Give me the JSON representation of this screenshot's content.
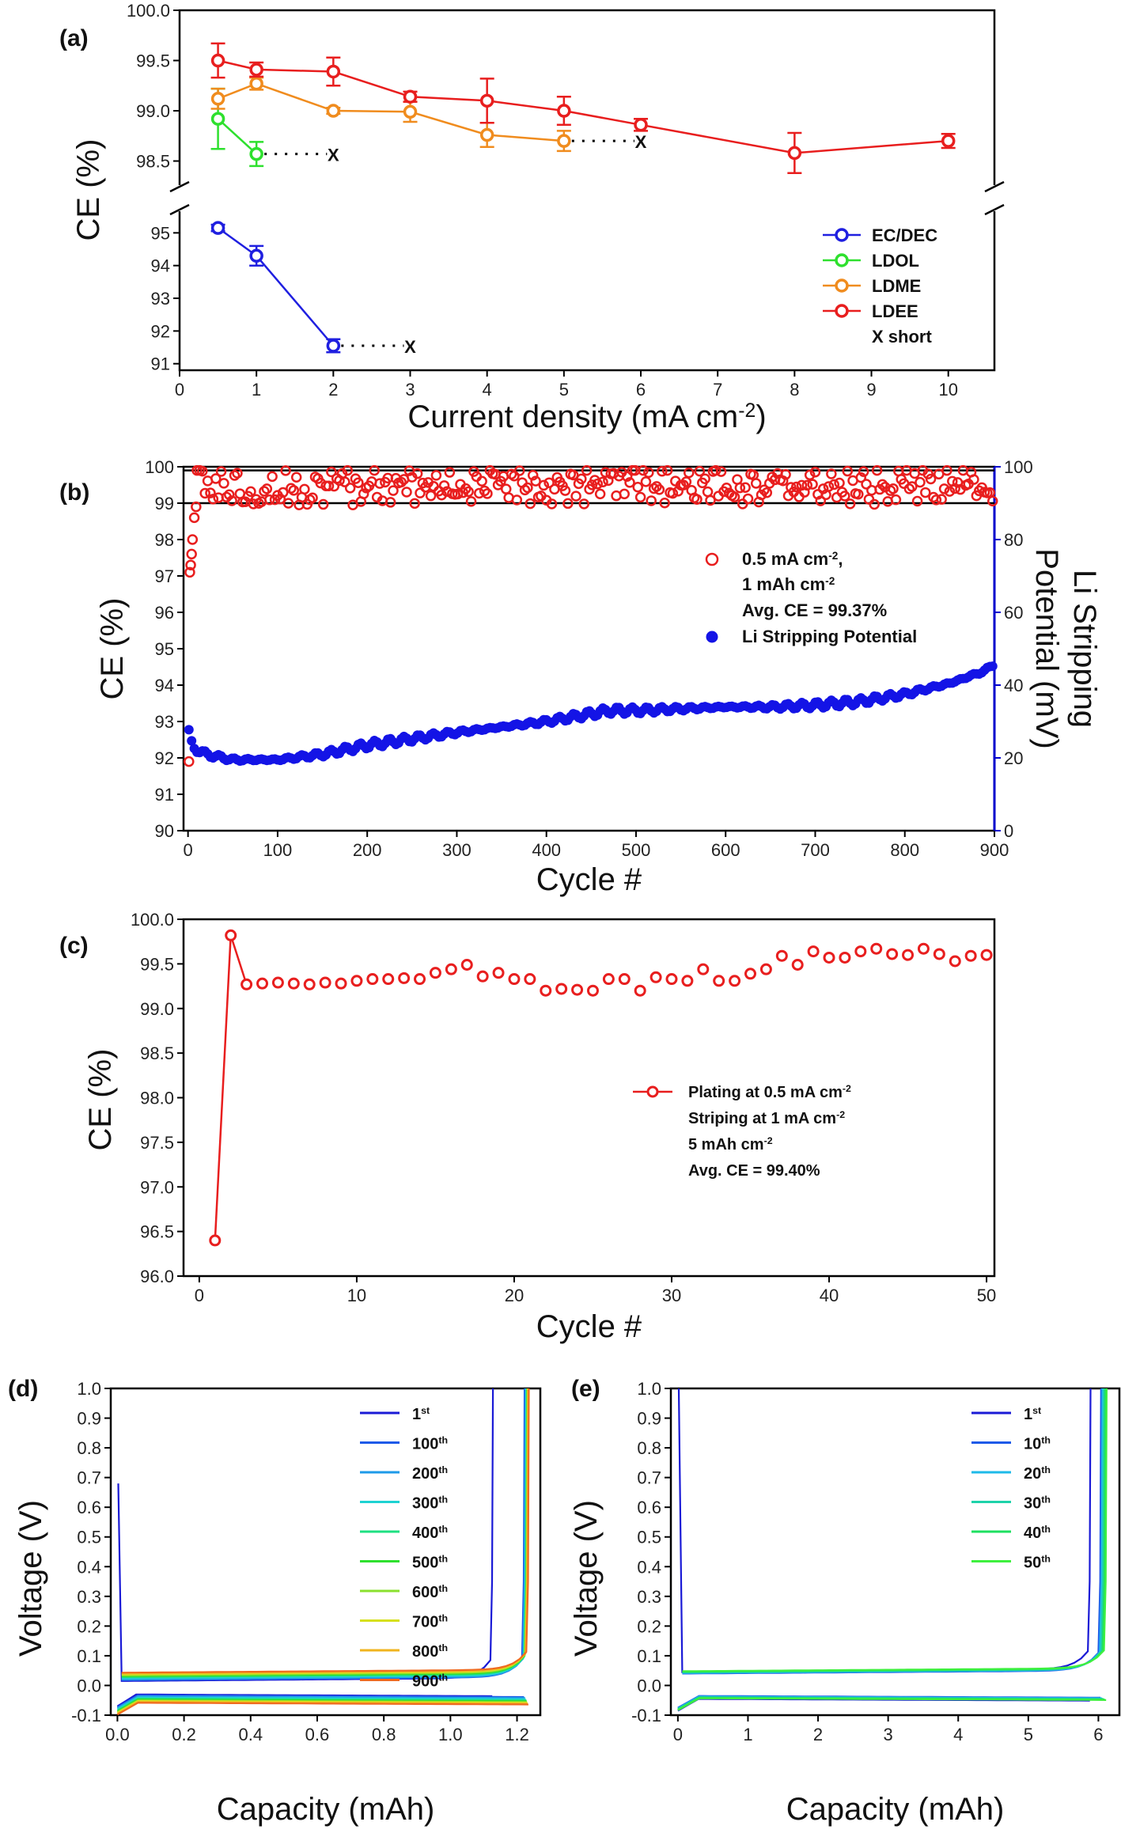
{
  "chart_data": [
    {
      "panel": "(a)",
      "type": "line",
      "xlabel": "Current density (mA cm",
      "xlabel_sup": "-2",
      "xlabel_end": ")",
      "ylabel": "CE (%)",
      "xlim": [
        0,
        10.6
      ],
      "xticks": [
        0,
        1,
        2,
        3,
        4,
        5,
        6,
        7,
        8,
        9,
        10
      ],
      "upper": {
        "ylim": [
          98.15,
          100.0
        ],
        "yticks": [
          "98.5",
          "99.0",
          "99.5",
          "100.0"
        ]
      },
      "lower": {
        "ylim": [
          90.8,
          96.0
        ],
        "yticks": [
          "91",
          "92",
          "93",
          "94",
          "95"
        ]
      },
      "series": [
        {
          "name": "EC/DEC",
          "color": "#1f1fe0",
          "x": [
            0.5,
            1,
            2
          ],
          "y": [
            95.15,
            94.3,
            91.55
          ],
          "err": [
            0.1,
            0.3,
            0.2
          ],
          "short_to": 3,
          "axis": "lower"
        },
        {
          "name": "LDOL",
          "color": "#2ee02e",
          "x": [
            0.5,
            1
          ],
          "y": [
            98.92,
            98.57
          ],
          "err": [
            0.3,
            0.12
          ],
          "short_to": 2,
          "axis": "upper"
        },
        {
          "name": "LDME",
          "color": "#f08c1e",
          "x": [
            0.5,
            1,
            2,
            3,
            4,
            5
          ],
          "y": [
            99.12,
            99.27,
            99.0,
            98.99,
            98.76,
            98.7
          ],
          "err": [
            0.1,
            0.06,
            0.03,
            0.1,
            0.12,
            0.1
          ],
          "short_to": 6,
          "axis": "upper"
        },
        {
          "name": "LDEE",
          "color": "#e81e1e",
          "x": [
            0.5,
            1,
            2,
            3,
            4,
            5,
            6,
            8,
            10
          ],
          "y": [
            99.5,
            99.41,
            99.39,
            99.14,
            99.1,
            99.0,
            98.86,
            98.58,
            98.7
          ],
          "err": [
            0.17,
            0.07,
            0.14,
            0.05,
            0.22,
            0.14,
            0.06,
            0.2,
            0.07
          ],
          "axis": "upper"
        }
      ],
      "short_marker": "X",
      "legend_extra": "X short"
    },
    {
      "panel": "(b)",
      "type": "scatter",
      "xlabel": "Cycle #",
      "ylabel": "CE (%)",
      "ylabel_right_1": "Li Stripping",
      "ylabel_right_2": "Potential (mV)",
      "xlim": [
        -5,
        900
      ],
      "ylim": [
        90,
        100
      ],
      "ylim_right": [
        0,
        100
      ],
      "xticks": [
        0,
        100,
        200,
        300,
        400,
        500,
        600,
        700,
        800,
        900
      ],
      "yticks": [
        90,
        91,
        92,
        93,
        94,
        95,
        96,
        97,
        98,
        99,
        100
      ],
      "yticks_right": [
        0,
        20,
        40,
        60,
        80,
        100
      ],
      "hlines": [
        99,
        99.9
      ],
      "ce_series": {
        "name": "0.5 mA cm-2, 1 mAh cm-2",
        "color": "#e81e1e",
        "start": [
          [
            1,
            91.9
          ],
          [
            2,
            97.1
          ],
          [
            3,
            97.3
          ],
          [
            4,
            97.6
          ],
          [
            5,
            98.0
          ],
          [
            7,
            98.6
          ],
          [
            9,
            98.9
          ]
        ],
        "envelope": {
          "from": 10,
          "to": 900,
          "base": 99.4,
          "lo": 98.9,
          "hi": 99.9
        }
      },
      "potential_series": {
        "name": "Li Stripping Potential",
        "color": "#1414e6",
        "knots": [
          [
            1,
            27
          ],
          [
            5,
            23
          ],
          [
            20,
            21
          ],
          [
            50,
            19.5
          ],
          [
            100,
            19.5
          ],
          [
            150,
            21
          ],
          [
            200,
            23.5
          ],
          [
            300,
            27
          ],
          [
            400,
            30
          ],
          [
            470,
            33
          ],
          [
            500,
            33
          ],
          [
            600,
            34
          ],
          [
            650,
            34
          ],
          [
            700,
            34.5
          ],
          [
            750,
            35.5
          ],
          [
            800,
            37.5
          ],
          [
            850,
            40.5
          ],
          [
            890,
            44
          ],
          [
            900,
            46
          ]
        ]
      },
      "legend": [
        {
          "line1": "0.5 mA cm",
          "sup1": "-2",
          "end1": ",",
          "line2": "1 mAh cm",
          "sup2": "-2"
        },
        {
          "line": "Avg. CE = 99.37%"
        },
        {
          "line": "Li Stripping Potential"
        }
      ]
    },
    {
      "panel": "(c)",
      "type": "line",
      "xlabel": "Cycle #",
      "ylabel": "CE (%)",
      "xlim": [
        -1,
        50.5
      ],
      "ylim": [
        96.0,
        100.0
      ],
      "xticks": [
        0,
        10,
        20,
        30,
        40,
        50
      ],
      "yticks": [
        "96.0",
        "96.5",
        "97.0",
        "97.5",
        "98.0",
        "98.5",
        "99.0",
        "99.5",
        "100.0"
      ],
      "series": [
        {
          "name": "Plating at 0.5 mA cm-2",
          "color": "#e81e1e",
          "x": [
            1,
            2,
            3,
            4,
            5,
            6,
            7,
            8,
            9,
            10,
            11,
            12,
            13,
            14,
            15,
            16,
            17,
            18,
            19,
            20,
            21,
            22,
            23,
            24,
            25,
            26,
            27,
            28,
            29,
            30,
            31,
            32,
            33,
            34,
            35,
            36,
            37,
            38,
            39,
            40,
            41,
            42,
            43,
            44,
            45,
            46,
            47,
            48,
            49,
            50
          ],
          "y": [
            96.4,
            99.82,
            99.27,
            99.28,
            99.29,
            99.28,
            99.27,
            99.29,
            99.28,
            99.31,
            99.33,
            99.33,
            99.34,
            99.33,
            99.4,
            99.44,
            99.49,
            99.36,
            99.4,
            99.33,
            99.33,
            99.2,
            99.22,
            99.21,
            99.2,
            99.33,
            99.33,
            99.2,
            99.35,
            99.33,
            99.31,
            99.44,
            99.31,
            99.31,
            99.39,
            99.44,
            99.59,
            99.49,
            99.64,
            99.57,
            99.57,
            99.64,
            99.67,
            99.61,
            99.6,
            99.67,
            99.61,
            99.53,
            99.59,
            99.6
          ]
        }
      ],
      "legend": [
        {
          "line": "Plating at 0.5 mA cm",
          "sup": "-2"
        },
        {
          "line": "Striping at 1 mA cm",
          "sup": "-2"
        },
        {
          "line": "5 mAh cm",
          "sup": "-2"
        },
        {
          "line": "Avg. CE = 99.40%"
        }
      ]
    },
    {
      "panel": "(d)",
      "type": "line",
      "xlabel": "Capacity (mAh)",
      "ylabel": "Voltage (V)",
      "xlim": [
        -0.02,
        1.27
      ],
      "ylim": [
        -0.1,
        1.0
      ],
      "xticks": [
        "0.0",
        "0.2",
        "0.4",
        "0.6",
        "0.8",
        "1.0",
        "1.2"
      ],
      "yticks": [
        "-0.1",
        "0.0",
        "0.1",
        "0.2",
        "0.3",
        "0.4",
        "0.5",
        "0.6",
        "0.7",
        "0.8",
        "0.9",
        "1.0"
      ],
      "series": [
        {
          "name": "1",
          "sup": "st",
          "color": "#1a1ad6",
          "cap": 1.12,
          "plate": -0.03,
          "strip": 0.015,
          "spike": 0.68
        },
        {
          "name": "100",
          "sup": "th",
          "color": "#1e5ae8",
          "cap": 1.215,
          "plate": -0.033,
          "strip": 0.018
        },
        {
          "name": "200",
          "sup": "th",
          "color": "#1e9ae8",
          "cap": 1.218,
          "plate": -0.036,
          "strip": 0.02
        },
        {
          "name": "300",
          "sup": "th",
          "color": "#1ed2d2",
          "cap": 1.22,
          "plate": -0.04,
          "strip": 0.024
        },
        {
          "name": "400",
          "sup": "th",
          "color": "#1ee082",
          "cap": 1.222,
          "plate": -0.044,
          "strip": 0.028
        },
        {
          "name": "500",
          "sup": "th",
          "color": "#2ee02e",
          "cap": 1.223,
          "plate": -0.047,
          "strip": 0.031
        },
        {
          "name": "600",
          "sup": "th",
          "color": "#8ae02e",
          "cap": 1.224,
          "plate": -0.05,
          "strip": 0.034
        },
        {
          "name": "700",
          "sup": "th",
          "color": "#d6e01e",
          "cap": 1.225,
          "plate": -0.052,
          "strip": 0.037
        },
        {
          "name": "800",
          "sup": "th",
          "color": "#f0b41e",
          "cap": 1.226,
          "plate": -0.055,
          "strip": 0.04
        },
        {
          "name": "900",
          "sup": "th",
          "color": "#f06a1e",
          "cap": 1.228,
          "plate": -0.058,
          "strip": 0.043
        }
      ]
    },
    {
      "panel": "(e)",
      "type": "line",
      "xlabel": "Capacity (mAh)",
      "ylabel": "Voltage (V)",
      "xlim": [
        -0.1,
        6.3
      ],
      "ylim": [
        -0.1,
        1.0
      ],
      "xticks": [
        "0",
        "1",
        "2",
        "3",
        "4",
        "5",
        "6"
      ],
      "yticks": [
        "-0.1",
        "0.0",
        "0.1",
        "0.2",
        "0.3",
        "0.4",
        "0.5",
        "0.6",
        "0.7",
        "0.8",
        "0.9",
        "1.0"
      ],
      "series": [
        {
          "name": "1",
          "sup": "st",
          "color": "#1a1ad6",
          "cap": 5.85,
          "plate": -0.045,
          "strip": 0.045,
          "spike": 1.0
        },
        {
          "name": "10",
          "sup": "th",
          "color": "#1e5ae8",
          "cap": 6.0,
          "plate": -0.035,
          "strip": 0.04
        },
        {
          "name": "20",
          "sup": "th",
          "color": "#1ebae8",
          "cap": 6.02,
          "plate": -0.037,
          "strip": 0.042
        },
        {
          "name": "30",
          "sup": "th",
          "color": "#1ed2aa",
          "cap": 6.04,
          "plate": -0.039,
          "strip": 0.044
        },
        {
          "name": "40",
          "sup": "th",
          "color": "#1ee060",
          "cap": 6.06,
          "plate": -0.041,
          "strip": 0.046
        },
        {
          "name": "50",
          "sup": "th",
          "color": "#3ef03e",
          "cap": 6.08,
          "plate": -0.043,
          "strip": 0.048
        }
      ]
    }
  ]
}
